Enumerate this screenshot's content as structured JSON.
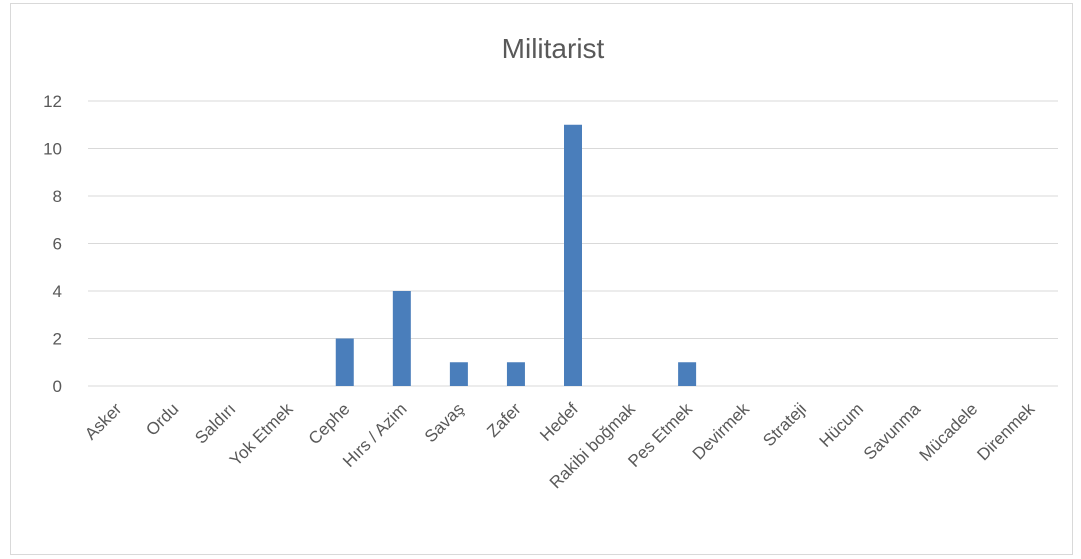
{
  "chart_data": {
    "type": "bar",
    "title": "Militarist",
    "xlabel": "",
    "ylabel": "",
    "ylim": [
      0,
      12
    ],
    "yticks": [
      0,
      2,
      4,
      6,
      8,
      10,
      12
    ],
    "grid": true,
    "legend": "none",
    "categories": [
      "Asker",
      "Ordu",
      "Saldırı",
      "Yok Etmek",
      "Cephe",
      "Hırs / Azim",
      "Savaş",
      "Zafer",
      "Hedef",
      "Rakibi boğmak",
      "Pes Etmek",
      "Devirmek",
      "Strateji",
      "Hücum",
      "Savunma",
      "Mücadele",
      "Direnmek"
    ],
    "values": [
      0,
      0,
      0,
      0,
      2,
      4,
      1,
      1,
      11,
      0,
      1,
      0,
      0,
      0,
      0,
      0,
      0
    ],
    "bar_color": "#4a7ebb"
  }
}
